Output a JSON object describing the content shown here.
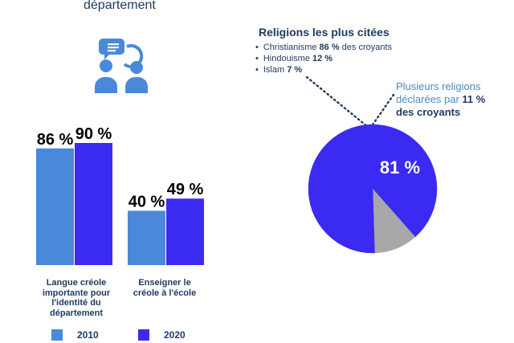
{
  "header": {
    "title": "département"
  },
  "chart_data": [
    {
      "type": "bar",
      "categories": [
        "Langue créole importante pour l'identité du département",
        "Enseigner le créole à l'école"
      ],
      "category_lines": [
        [
          "Langue créole",
          "importante pour",
          "l'identité du",
          "département"
        ],
        [
          "Enseigner le",
          "créole à l'école"
        ]
      ],
      "series": [
        {
          "name": "2010",
          "values": [
            86,
            40
          ],
          "labels": [
            "86 %",
            "40 %"
          ],
          "color": "#4a89d9"
        },
        {
          "name": "2020",
          "values": [
            90,
            49
          ],
          "labels": [
            "90 %",
            "49 %"
          ],
          "color": "#3b2af2"
        }
      ],
      "ylim": [
        0,
        100
      ]
    },
    {
      "type": "pie",
      "title": "Religions les plus citées",
      "details": [
        {
          "prefix": "Christianisme ",
          "value": "86 %",
          "suffix": " des croyants"
        },
        {
          "prefix": "Hindouisme ",
          "value": "12 %",
          "suffix": ""
        },
        {
          "prefix": "Islam ",
          "value": "7 %",
          "suffix": ""
        }
      ],
      "slices": [
        {
          "name": "main",
          "value": 81,
          "label": "81 %",
          "color": "#3b2af2"
        },
        {
          "name": "multiple",
          "value": 11,
          "color": "#a8a8a8"
        },
        {
          "name": "other",
          "value": 8,
          "color": "#3b2af2"
        }
      ],
      "annotation": {
        "line1": "Plusieurs religions",
        "line2_prefix": "déclarées par ",
        "line2_value": "11 %",
        "line3": "des croyants"
      }
    }
  ],
  "colors": {
    "text": "#1e3a5f",
    "y2010": "#4a89d9",
    "y2020": "#3b2af2",
    "grey": "#a8a8a8",
    "icon": "#4a89d9"
  }
}
